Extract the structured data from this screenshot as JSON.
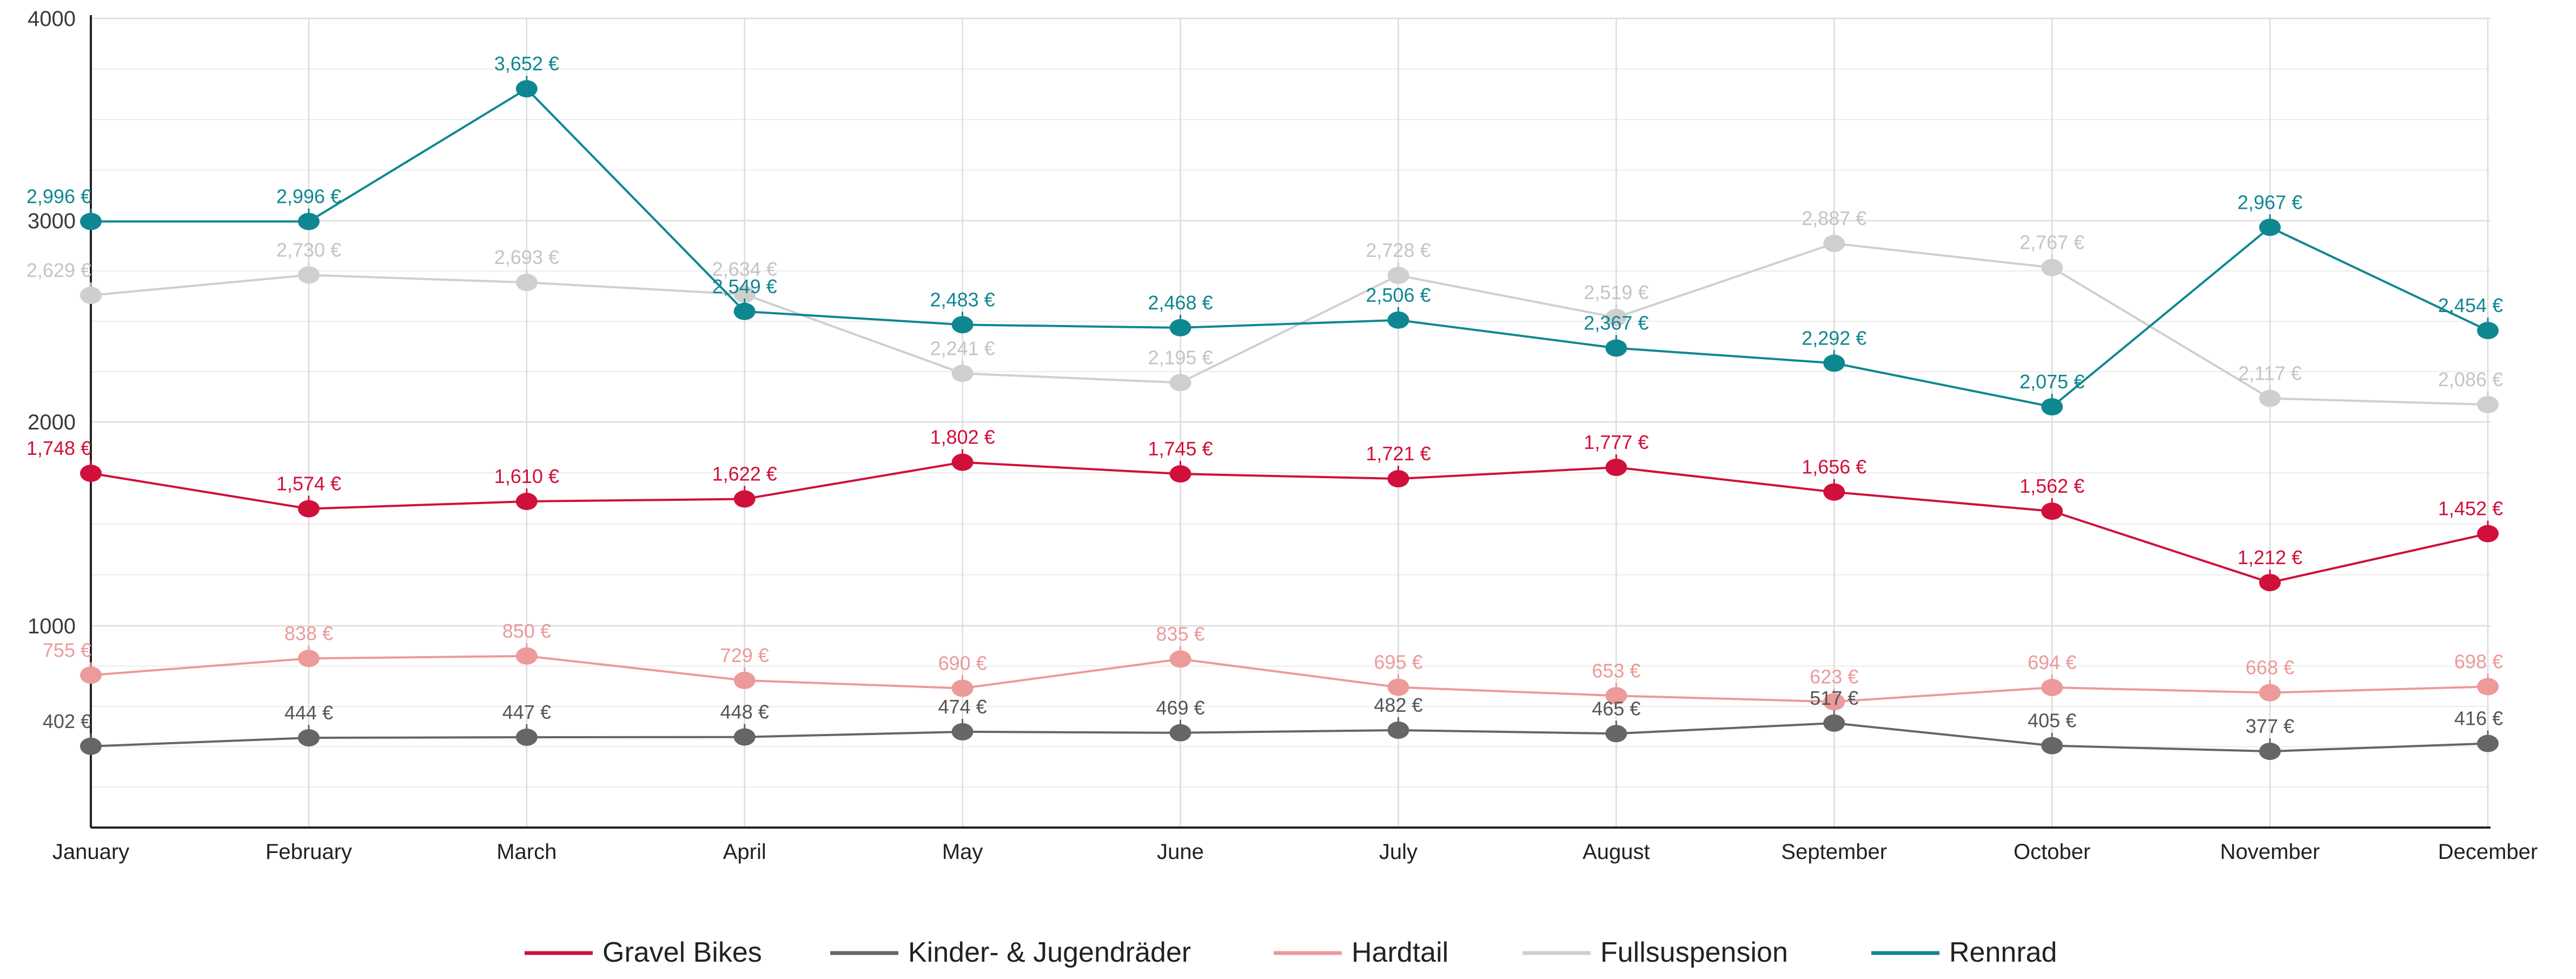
{
  "chart_data": {
    "type": "line",
    "title": "",
    "xlabel": "",
    "ylabel": "",
    "categories": [
      "January",
      "February",
      "March",
      "April",
      "May",
      "June",
      "July",
      "August",
      "September",
      "October",
      "November",
      "December"
    ],
    "y_ticks": [
      "4000",
      "3000",
      "2000",
      "1000"
    ],
    "ylim": [
      0,
      4000
    ],
    "scale_note": "non-uniform y axis: major ticks at 1000, 2000, 3000, 4000 are evenly spaced",
    "grid": true,
    "legend_position": "bottom",
    "series": [
      {
        "name": "Gravel Bikes",
        "color": "#d0103a",
        "label_color": "#d0103a",
        "values": [
          1748,
          1574,
          1610,
          1622,
          1802,
          1745,
          1721,
          1777,
          1656,
          1562,
          1212,
          1452
        ],
        "labels": [
          "1,748 €",
          "1,574 €",
          "1,610 €",
          "1,622 €",
          "1,802 €",
          "1,745 €",
          "1,721 €",
          "1,777 €",
          "1,656 €",
          "1,562 €",
          "1,212 €",
          "1,452 €"
        ]
      },
      {
        "name": "Kinder- & Jugendräder",
        "color": "#666666",
        "label_color": "#555555",
        "values": [
          402,
          444,
          447,
          448,
          474,
          469,
          482,
          465,
          517,
          405,
          377,
          416
        ],
        "labels": [
          "402 €",
          "444 €",
          "447 €",
          "448 €",
          "474 €",
          "469 €",
          "482 €",
          "465 €",
          "517 €",
          "405 €",
          "377 €",
          "416 €"
        ]
      },
      {
        "name": "Hardtail",
        "color": "#ec9a9a",
        "label_color": "#ec9a9a",
        "values": [
          755,
          838,
          850,
          729,
          690,
          835,
          695,
          653,
          623,
          694,
          668,
          698
        ],
        "labels": [
          "755 €",
          "838 €",
          "850 €",
          "729 €",
          "690 €",
          "835 €",
          "695 €",
          "653 €",
          "623 €",
          "694 €",
          "668 €",
          "698 €"
        ]
      },
      {
        "name": "Fullsuspension",
        "color": "#cfcfcf",
        "label_color": "#c4c4c4",
        "values": [
          2629,
          2730,
          2693,
          2634,
          2241,
          2195,
          2728,
          2519,
          2887,
          2767,
          2117,
          2086
        ],
        "labels": [
          "2,629 €",
          "2,730 €",
          "2,693 €",
          "2,634 €",
          "2,241 €",
          "2,195 €",
          "2,728 €",
          "2,519 €",
          "2,887 €",
          "2,767 €",
          "2,117 €",
          "2,086 €"
        ]
      },
      {
        "name": "Rennrad",
        "color": "#0f8791",
        "label_color": "#0f8791",
        "values": [
          2996,
          2996,
          3652,
          2549,
          2483,
          2468,
          2506,
          2367,
          2292,
          2075,
          2967,
          2454
        ],
        "labels": [
          "2,996 €",
          "2,996 €",
          "3,652 €",
          "2,549 €",
          "2,483 €",
          "2,468 €",
          "2,506 €",
          "2,367 €",
          "2,292 €",
          "2,075 €",
          "2,967 €",
          "2,454 €"
        ]
      }
    ]
  }
}
